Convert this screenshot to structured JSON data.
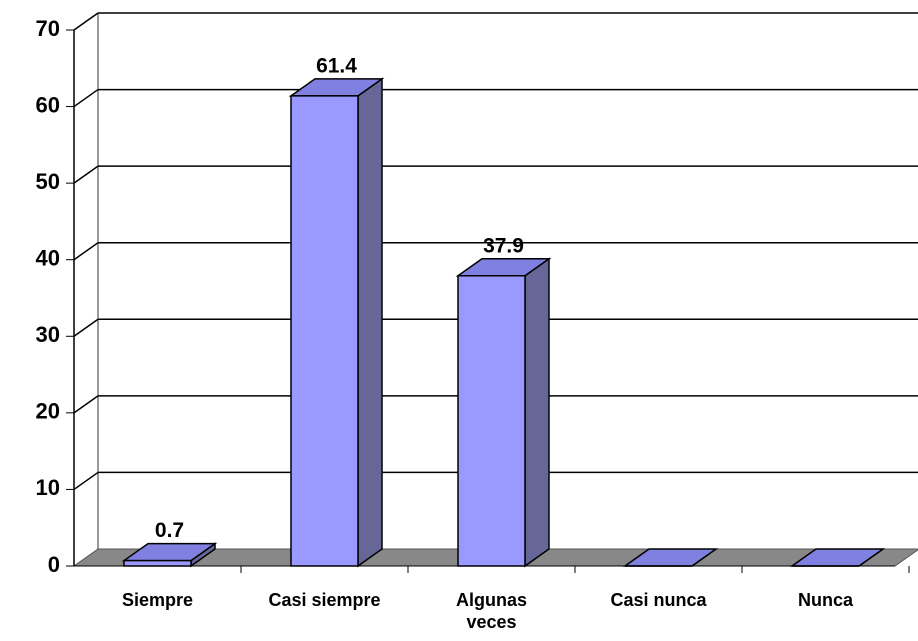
{
  "chart_data": {
    "type": "bar3d",
    "categories": [
      "Siempre",
      "Casi siempre",
      "Algunas veces",
      "Casi nunca",
      "Nunca"
    ],
    "values": [
      0.7,
      61.4,
      37.9,
      0,
      0
    ],
    "value_labels": [
      "0.7",
      "61.4",
      "37.9",
      null,
      null
    ],
    "color": "#9999ff",
    "ylim": [
      0,
      70
    ],
    "yticks": [
      0,
      10,
      20,
      30,
      40,
      50,
      60,
      70
    ],
    "grid": true
  }
}
